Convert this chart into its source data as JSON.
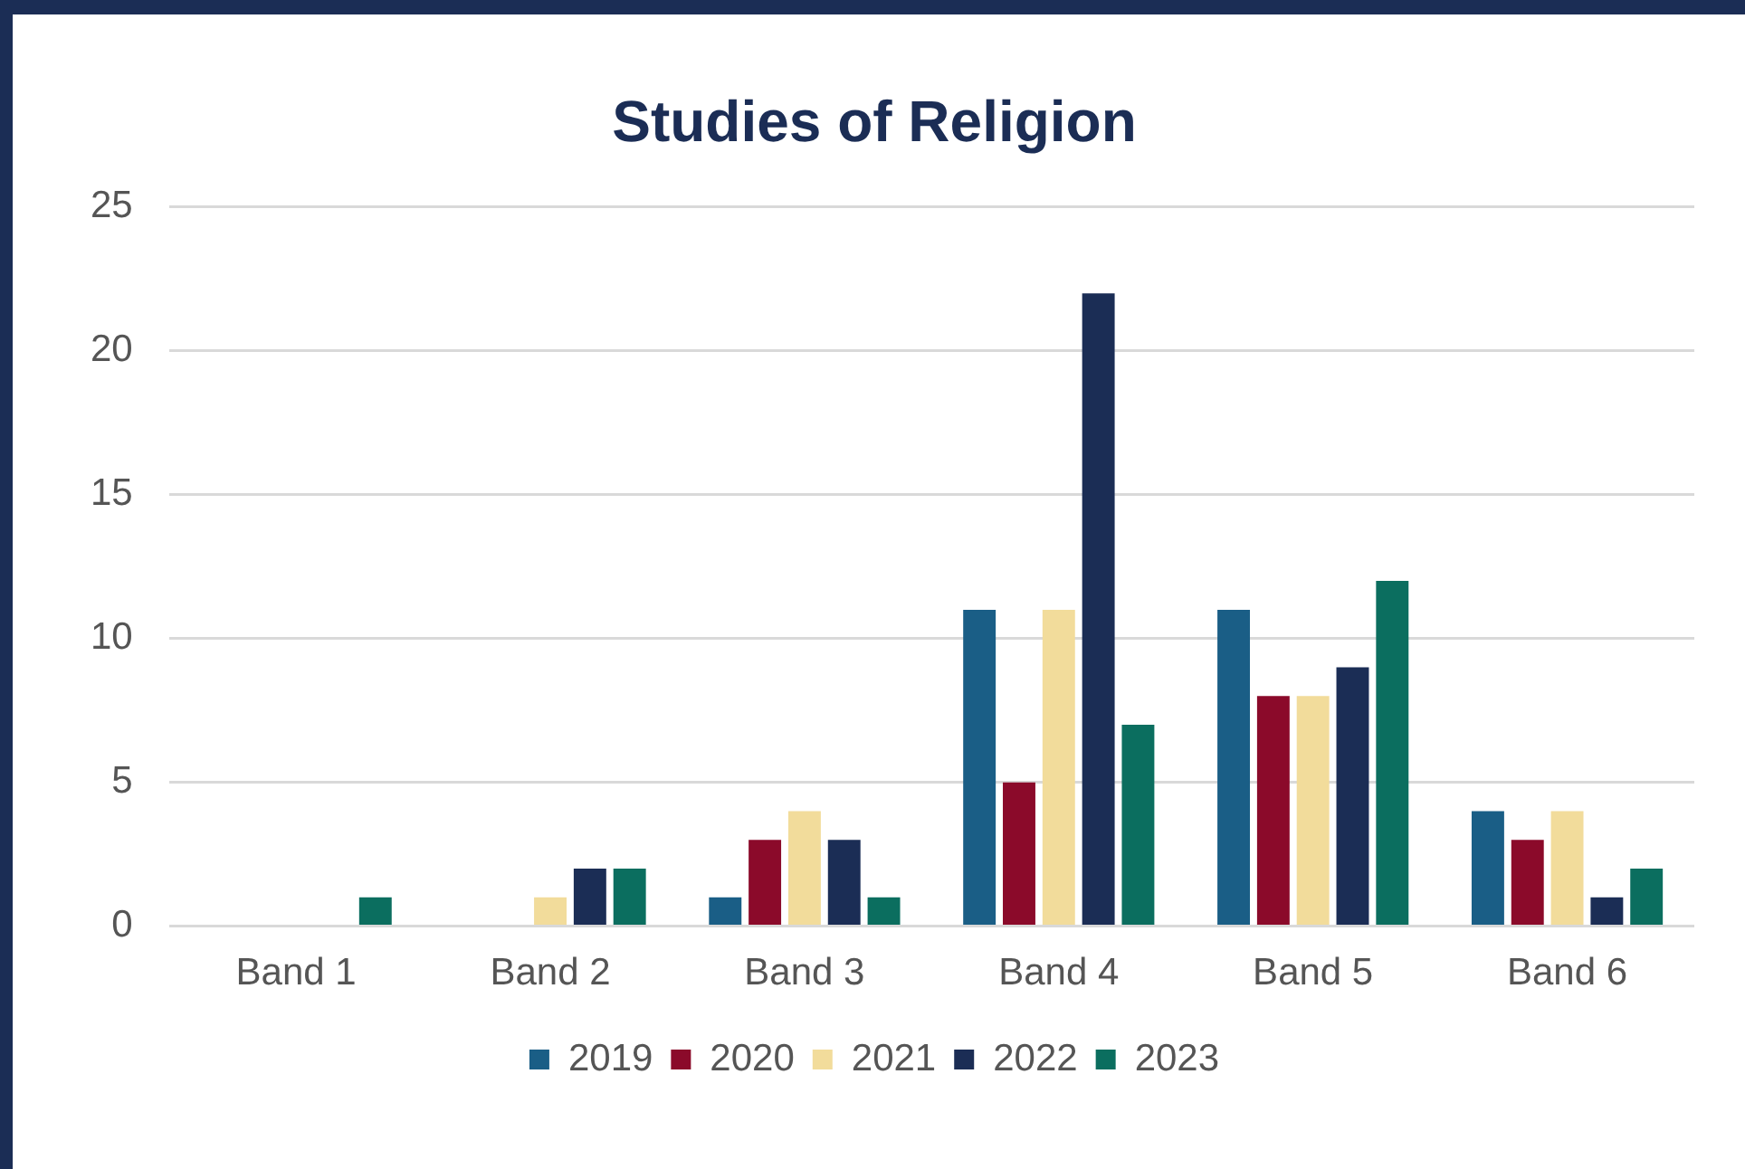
{
  "chart_data": {
    "type": "bar",
    "title": "Studies of Religion",
    "categories": [
      "Band 1",
      "Band 2",
      "Band 3",
      "Band 4",
      "Band 5",
      "Band 6"
    ],
    "series": [
      {
        "name": "2019",
        "color": "#1a5e86",
        "values": [
          0,
          0,
          1,
          11,
          11,
          4
        ]
      },
      {
        "name": "2020",
        "color": "#8b0a2a",
        "values": [
          0,
          0,
          3,
          5,
          8,
          3
        ]
      },
      {
        "name": "2021",
        "color": "#f2dc9b",
        "values": [
          0,
          1,
          4,
          11,
          8,
          4
        ]
      },
      {
        "name": "2022",
        "color": "#1b2d55",
        "values": [
          0,
          2,
          3,
          22,
          9,
          1
        ]
      },
      {
        "name": "2023",
        "color": "#0b6e5f",
        "values": [
          1,
          2,
          1,
          7,
          12,
          2
        ]
      }
    ],
    "ylim": [
      0,
      25
    ],
    "yticks": [
      0,
      5,
      10,
      15,
      20,
      25
    ],
    "grid": "y",
    "legend": "bottom"
  }
}
